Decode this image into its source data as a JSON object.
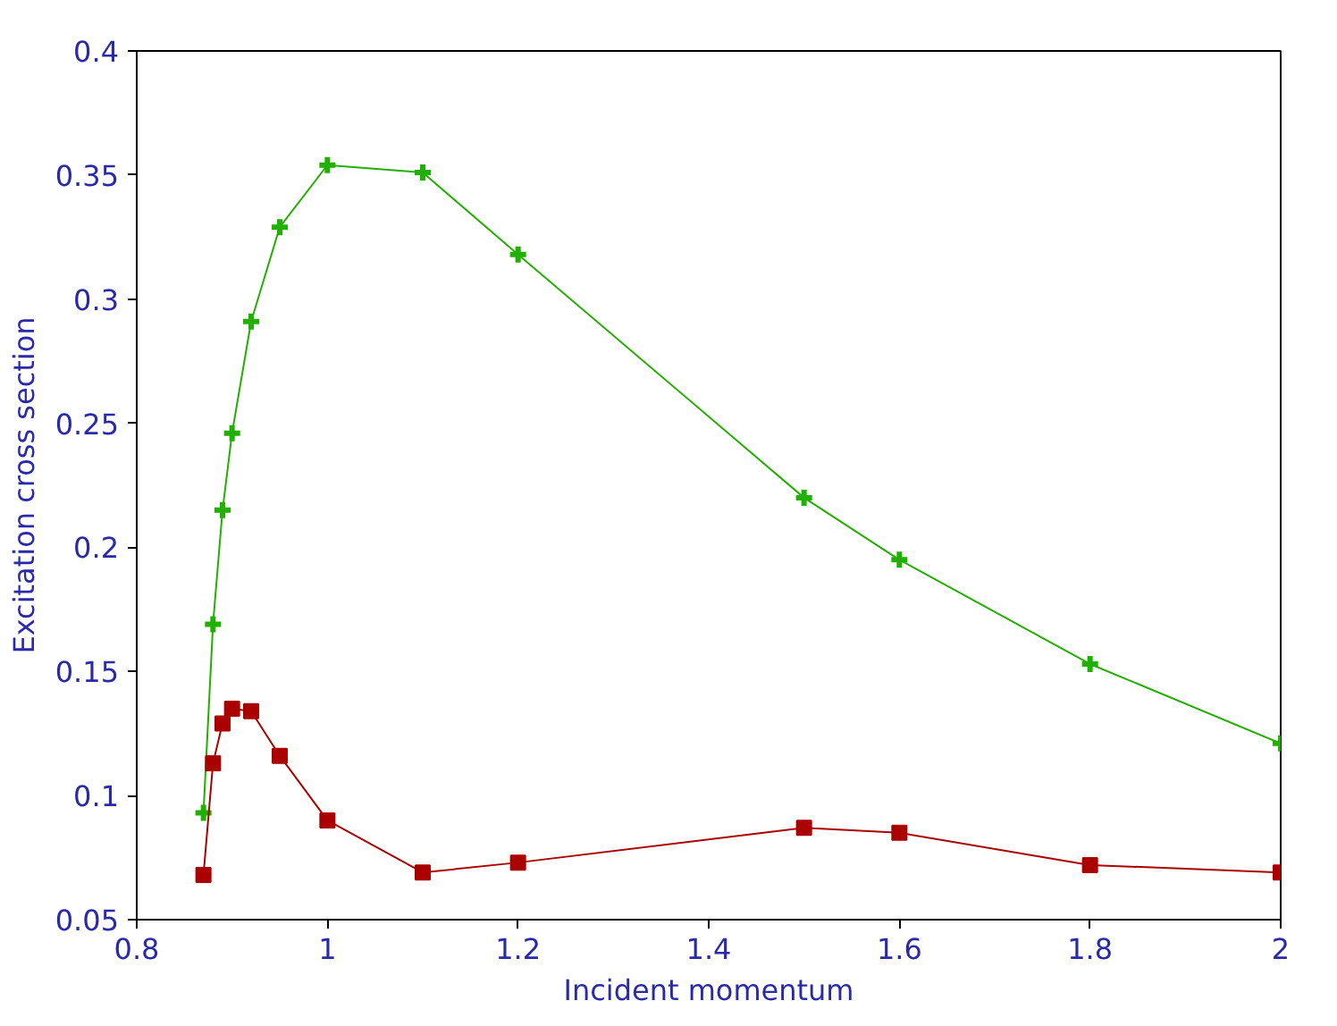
{
  "chart_data": {
    "type": "line",
    "xlabel": "Incident momentum",
    "ylabel": "Excitation cross section",
    "xlim": [
      0.8,
      2
    ],
    "ylim": [
      0.05,
      0.4
    ],
    "xticks": [
      0.8,
      1,
      1.2,
      1.4,
      1.6,
      1.8,
      2
    ],
    "yticks": [
      0.05,
      0.1,
      0.15,
      0.2,
      0.25,
      0.3,
      0.35,
      0.4
    ],
    "grid": false,
    "series": [
      {
        "color": "#22b000",
        "marker": "cross",
        "x": [
          0.87,
          0.88,
          0.89,
          0.9,
          0.92,
          0.95,
          1.0,
          1.1,
          1.2,
          1.5,
          1.6,
          1.8,
          2.0
        ],
        "values": [
          0.093,
          0.169,
          0.215,
          0.246,
          0.291,
          0.329,
          0.354,
          0.351,
          0.318,
          0.22,
          0.195,
          0.153,
          0.121
        ]
      },
      {
        "color": "#aa0000",
        "marker": "square",
        "x": [
          0.87,
          0.88,
          0.89,
          0.9,
          0.92,
          0.95,
          1.0,
          1.1,
          1.2,
          1.5,
          1.6,
          1.8,
          2.0
        ],
        "values": [
          0.068,
          0.113,
          0.129,
          0.135,
          0.134,
          0.116,
          0.09,
          0.069,
          0.073,
          0.087,
          0.085,
          0.072,
          0.069
        ]
      }
    ]
  }
}
